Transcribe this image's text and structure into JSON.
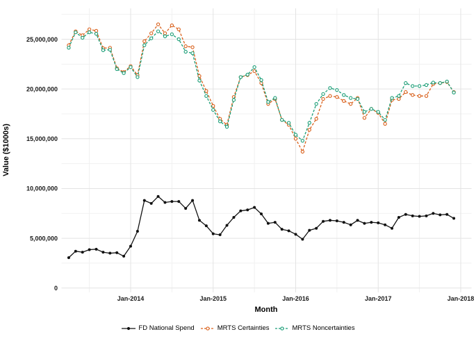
{
  "chart_data": {
    "type": "line",
    "title": "",
    "xlabel": "Month",
    "ylabel": "Value ($1000s)",
    "grid": true,
    "legend_position": "bottom",
    "ylim": [
      0,
      27500000
    ],
    "y_ticks": [
      {
        "label": "0",
        "value": 0
      },
      {
        "label": "5,000,000",
        "value": 5000000
      },
      {
        "label": "10,000,000",
        "value": 10000000
      },
      {
        "label": "15,000,000",
        "value": 15000000
      },
      {
        "label": "20,000,000",
        "value": 20000000
      },
      {
        "label": "25,000,000",
        "value": 25000000
      }
    ],
    "y_minor_values": [
      2500000,
      7500000,
      12500000,
      17500000,
      22500000,
      27500000
    ],
    "x_ticks": [
      {
        "label": "Jan-2014",
        "month_index": 9
      },
      {
        "label": "Jan-2015",
        "month_index": 21
      },
      {
        "label": "Jan-2016",
        "month_index": 33
      },
      {
        "label": "Jan-2017",
        "month_index": 45
      },
      {
        "label": "Jan-2018",
        "month_index": 57
      }
    ],
    "x_minor_month_indices": [
      3,
      15,
      27,
      39,
      51
    ],
    "categories": [
      "Apr-2013",
      "May-2013",
      "Jun-2013",
      "Jul-2013",
      "Aug-2013",
      "Sep-2013",
      "Oct-2013",
      "Nov-2013",
      "Dec-2013",
      "Jan-2014",
      "Feb-2014",
      "Mar-2014",
      "Apr-2014",
      "May-2014",
      "Jun-2014",
      "Jul-2014",
      "Aug-2014",
      "Sep-2014",
      "Oct-2014",
      "Nov-2014",
      "Dec-2014",
      "Jan-2015",
      "Feb-2015",
      "Mar-2015",
      "Apr-2015",
      "May-2015",
      "Jun-2015",
      "Jul-2015",
      "Aug-2015",
      "Sep-2015",
      "Oct-2015",
      "Nov-2015",
      "Dec-2015",
      "Jan-2016",
      "Feb-2016",
      "Mar-2016",
      "Apr-2016",
      "May-2016",
      "Jun-2016",
      "Jul-2016",
      "Aug-2016",
      "Sep-2016",
      "Oct-2016",
      "Nov-2016",
      "Dec-2016",
      "Jan-2017",
      "Feb-2017",
      "Mar-2017",
      "Apr-2017",
      "May-2017",
      "Jun-2017",
      "Jul-2017",
      "Aug-2017",
      "Sep-2017",
      "Oct-2017",
      "Nov-2017",
      "Dec-2017"
    ],
    "series": [
      {
        "name": "FD National Spend",
        "color": "#111111",
        "line_style": "solid",
        "marker": "filled-circle",
        "values": [
          3050000,
          3700000,
          3600000,
          3850000,
          3900000,
          3600000,
          3500000,
          3550000,
          3200000,
          4200000,
          5700000,
          8800000,
          8500000,
          9200000,
          8600000,
          8700000,
          8700000,
          8000000,
          8800000,
          6800000,
          6250000,
          5450000,
          5350000,
          6300000,
          7100000,
          7750000,
          7850000,
          8100000,
          7450000,
          6500000,
          6600000,
          5900000,
          5750000,
          5400000,
          4900000,
          5800000,
          6000000,
          6700000,
          6800000,
          6750000,
          6600000,
          6350000,
          6800000,
          6500000,
          6600000,
          6550000,
          6350000,
          6000000,
          7100000,
          7400000,
          7250000,
          7200000,
          7250000,
          7500000,
          7350000,
          7400000,
          7000000
        ]
      },
      {
        "name": "MRTS Certainties",
        "color": "#D9601B",
        "line_style": "dashed",
        "marker": "open-circle",
        "values": [
          24400000,
          25800000,
          25400000,
          26000000,
          25850000,
          24100000,
          24150000,
          22100000,
          21700000,
          22300000,
          21400000,
          24800000,
          25600000,
          26500000,
          25600000,
          26400000,
          26000000,
          24300000,
          24200000,
          21300000,
          19800000,
          18300000,
          17000000,
          16400000,
          19200000,
          21200000,
          21400000,
          21800000,
          20600000,
          18500000,
          19000000,
          16900000,
          16400000,
          15000000,
          13700000,
          15900000,
          17000000,
          19000000,
          19300000,
          19200000,
          18800000,
          18500000,
          19100000,
          17100000,
          18000000,
          17600000,
          16500000,
          18900000,
          19000000,
          19700000,
          19400000,
          19300000,
          19300000,
          20500000,
          20600000,
          20700000,
          19700000
        ]
      },
      {
        "name": "MRTS Noncertainties",
        "color": "#1B9E77",
        "line_style": "dashed",
        "marker": "open-circle",
        "values": [
          24150000,
          25700000,
          25150000,
          25700000,
          25550000,
          23900000,
          23950000,
          22000000,
          21600000,
          22200000,
          21200000,
          24400000,
          25100000,
          25800000,
          25300000,
          25500000,
          25000000,
          23750000,
          23600000,
          20850000,
          19300000,
          17900000,
          16750000,
          16200000,
          18900000,
          21200000,
          21450000,
          22200000,
          20900000,
          18700000,
          19100000,
          16900000,
          16600000,
          15400000,
          14800000,
          16600000,
          18500000,
          19500000,
          20100000,
          19900000,
          19400000,
          19100000,
          19000000,
          17700000,
          18000000,
          17700000,
          16900000,
          19100000,
          19300000,
          20600000,
          20300000,
          20300000,
          20400000,
          20650000,
          20600000,
          20750000,
          19650000
        ]
      }
    ]
  }
}
